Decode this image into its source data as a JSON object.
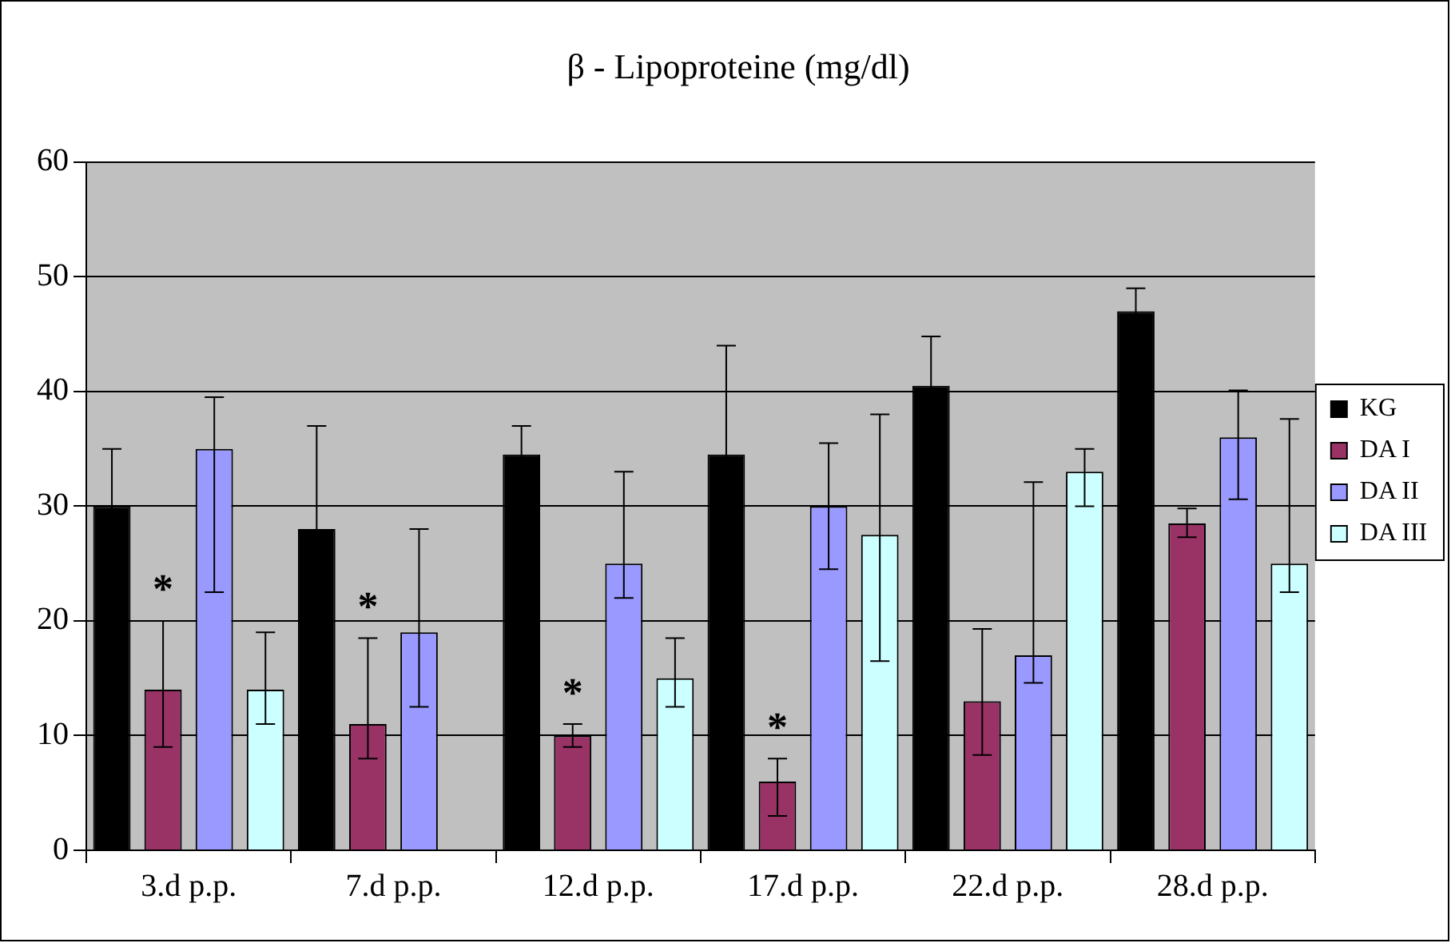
{
  "chart_data": {
    "type": "bar",
    "title": "β - Lipoproteine (mg/dl)",
    "categories": [
      "3.d p.p.",
      "7.d p.p.",
      "12.d p.p.",
      "17.d p.p.",
      "22.d p.p.",
      "28.d p.p."
    ],
    "series": [
      {
        "name": "KG",
        "color": "#000000",
        "values": [
          30,
          28,
          34.5,
          34.5,
          40.5,
          47
        ],
        "errors": [
          5,
          9,
          2.5,
          9.5,
          4.3,
          2
        ]
      },
      {
        "name": "DA I",
        "color": "#993366",
        "values": [
          14,
          11,
          10,
          6,
          13,
          28.5
        ],
        "errors": [
          [
            9,
            20
          ],
          [
            8,
            18.5
          ],
          [
            9,
            11
          ],
          [
            3,
            8
          ],
          [
            8.3,
            19.3
          ],
          [
            27.3,
            29.8
          ]
        ]
      },
      {
        "name": "DA II",
        "color": "#9999ff",
        "values": [
          35,
          19,
          25,
          30,
          17,
          36
        ],
        "errors": [
          [
            22.5,
            39.5
          ],
          [
            12.5,
            28
          ],
          [
            22,
            33
          ],
          [
            24.5,
            35.5
          ],
          [
            14.6,
            32.1
          ],
          [
            30.6,
            40.1
          ]
        ]
      },
      {
        "name": "DA III",
        "color": "#ccffff",
        "values": [
          14,
          null,
          15,
          27.5,
          33,
          25
        ],
        "errors": [
          [
            11,
            19
          ],
          null,
          [
            12.5,
            18.5
          ],
          [
            16.5,
            38
          ],
          [
            30,
            35
          ],
          [
            22.5,
            37.6
          ]
        ]
      }
    ],
    "ylim": [
      0,
      60
    ],
    "yticks": [
      0,
      10,
      20,
      30,
      40,
      50,
      60
    ],
    "grid": "y",
    "legend": "right",
    "annotations": [
      "*",
      "*",
      "*",
      "*"
    ]
  }
}
